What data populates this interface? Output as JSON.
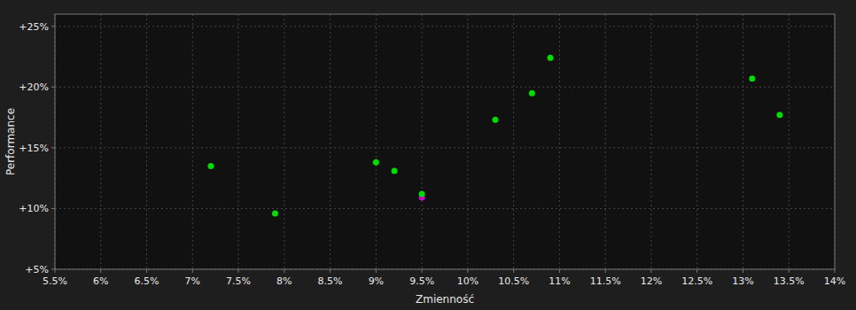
{
  "chart_data": {
    "type": "scatter",
    "xlabel": "Zmienność",
    "ylabel": "Performance",
    "xlim": [
      0.055,
      0.14
    ],
    "ylim": [
      0.05,
      0.26
    ],
    "xticks": [
      {
        "value": 0.055,
        "label": "5.5%"
      },
      {
        "value": 0.06,
        "label": "6%"
      },
      {
        "value": 0.065,
        "label": "6.5%"
      },
      {
        "value": 0.07,
        "label": "7%"
      },
      {
        "value": 0.075,
        "label": "7.5%"
      },
      {
        "value": 0.08,
        "label": "8%"
      },
      {
        "value": 0.085,
        "label": "8.5%"
      },
      {
        "value": 0.09,
        "label": "9%"
      },
      {
        "value": 0.095,
        "label": "9.5%"
      },
      {
        "value": 0.1,
        "label": "10%"
      },
      {
        "value": 0.105,
        "label": "10.5%"
      },
      {
        "value": 0.11,
        "label": "11%"
      },
      {
        "value": 0.115,
        "label": "11.5%"
      },
      {
        "value": 0.12,
        "label": "12%"
      },
      {
        "value": 0.125,
        "label": "12.5%"
      },
      {
        "value": 0.13,
        "label": "13%"
      },
      {
        "value": 0.135,
        "label": "13.5%"
      },
      {
        "value": 0.14,
        "label": "14%"
      }
    ],
    "yticks": [
      {
        "value": 0.05,
        "label": "+5%"
      },
      {
        "value": 0.1,
        "label": "+10%"
      },
      {
        "value": 0.15,
        "label": "+15%"
      },
      {
        "value": 0.2,
        "label": "+20%"
      },
      {
        "value": 0.25,
        "label": "+25%"
      }
    ],
    "grid": true,
    "series": [
      {
        "color": "#00dd00",
        "x": [
          0.072,
          0.09,
          0.092,
          0.079,
          0.103,
          0.107,
          0.109,
          0.131,
          0.134
        ],
        "values": [
          0.135,
          0.138,
          0.131,
          0.096,
          0.173,
          0.195,
          0.224,
          0.207,
          0.177
        ]
      },
      {
        "color": "#cc00cc",
        "x": [
          0.095
        ],
        "values": [
          0.109
        ]
      },
      {
        "color": "#00dd00",
        "x": [
          0.095
        ],
        "values": [
          0.112
        ]
      }
    ]
  }
}
